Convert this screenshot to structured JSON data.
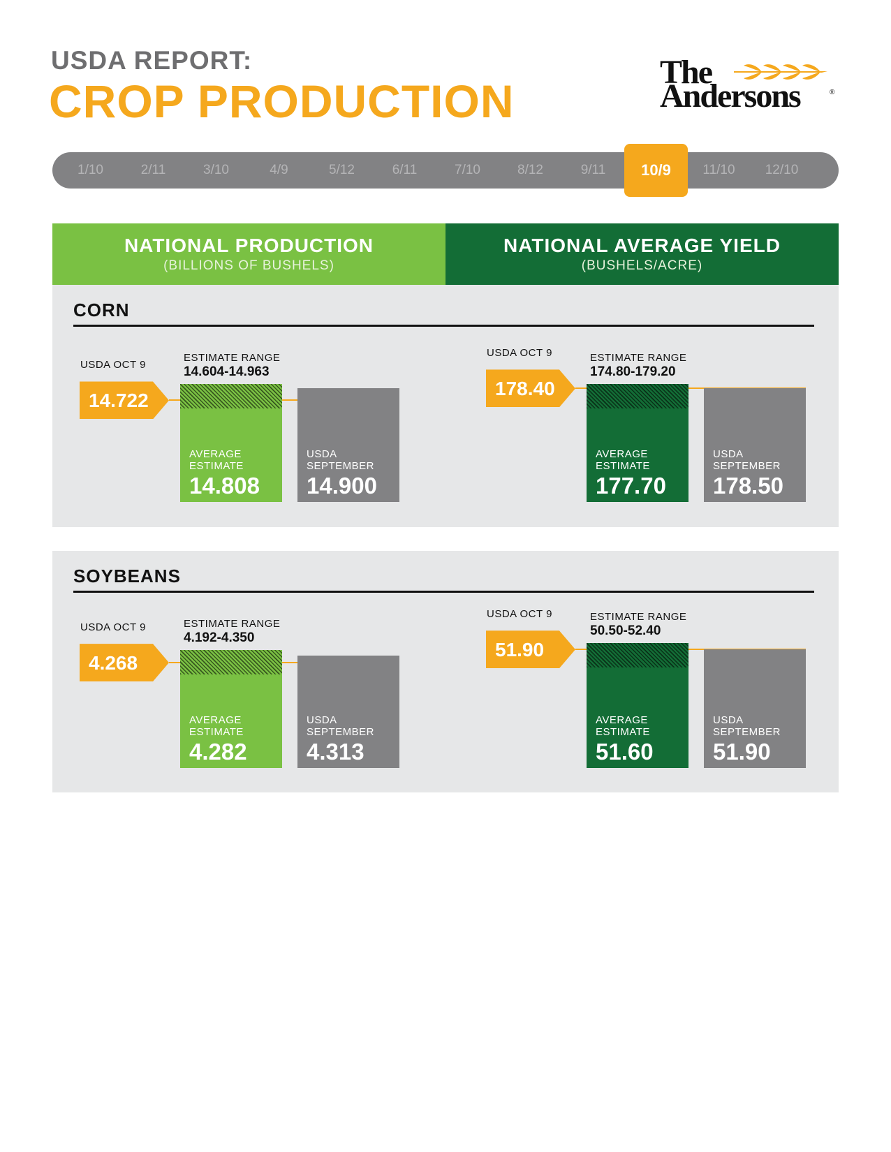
{
  "header": {
    "subtitle": "USDA REPORT:",
    "title": "CROP PRODUCTION"
  },
  "logo": {
    "line1": "The",
    "line2": "Andersons",
    "mark": "®",
    "icon": "wheat-icon"
  },
  "timeline": {
    "dates": [
      "1/10",
      "2/11",
      "3/10",
      "4/9",
      "5/12",
      "6/11",
      "7/10",
      "8/12",
      "9/11",
      "10/9",
      "11/10",
      "12/10"
    ],
    "active": "10/9"
  },
  "columns": {
    "production": {
      "title": "NATIONAL PRODUCTION",
      "unit": "(BILLIONS OF BUSHELS)"
    },
    "yield": {
      "title": "NATIONAL AVERAGE YIELD",
      "unit": "(BUSHELS/ACRE)"
    }
  },
  "labels": {
    "usda": "USDA OCT 9",
    "range": "ESTIMATE RANGE",
    "avg_line1": "AVERAGE",
    "avg_line2": "ESTIMATE",
    "sep_line1": "USDA",
    "sep_line2": "SEPTEMBER"
  },
  "colors": {
    "orange": "#f5a81d",
    "light_green": "#7ac143",
    "dark_green": "#136d36",
    "gray": "#828284",
    "panel": "#e6e7e8"
  },
  "chart_data": [
    {
      "type": "bar",
      "crop": "CORN",
      "metric": "production",
      "categories": [
        "AVERAGE ESTIMATE",
        "USDA SEPTEMBER"
      ],
      "values": [
        14.808,
        14.9
      ],
      "value_labels": [
        "14.808",
        "14.900"
      ],
      "usda_oct9": 14.722,
      "usda_oct9_label": "14.722",
      "estimate_range": [
        14.604,
        14.963
      ],
      "estimate_range_label": "14.604-14.963"
    },
    {
      "type": "bar",
      "crop": "CORN",
      "metric": "yield",
      "categories": [
        "AVERAGE ESTIMATE",
        "USDA SEPTEMBER"
      ],
      "values": [
        177.7,
        178.5
      ],
      "value_labels": [
        "177.70",
        "178.50"
      ],
      "usda_oct9": 178.4,
      "usda_oct9_label": "178.40",
      "estimate_range": [
        174.8,
        179.2
      ],
      "estimate_range_label": "174.80-179.20"
    },
    {
      "type": "bar",
      "crop": "SOYBEANS",
      "metric": "production",
      "categories": [
        "AVERAGE ESTIMATE",
        "USDA SEPTEMBER"
      ],
      "values": [
        4.282,
        4.313
      ],
      "value_labels": [
        "4.282",
        "4.313"
      ],
      "usda_oct9": 4.268,
      "usda_oct9_label": "4.268",
      "estimate_range": [
        4.192,
        4.35
      ],
      "estimate_range_label": "4.192-4.350"
    },
    {
      "type": "bar",
      "crop": "SOYBEANS",
      "metric": "yield",
      "categories": [
        "AVERAGE ESTIMATE",
        "USDA SEPTEMBER"
      ],
      "values": [
        51.6,
        51.9
      ],
      "value_labels": [
        "51.60",
        "51.90"
      ],
      "usda_oct9": 51.9,
      "usda_oct9_label": "51.90",
      "estimate_range": [
        50.5,
        52.4
      ],
      "estimate_range_label": "50.50-52.40"
    }
  ]
}
